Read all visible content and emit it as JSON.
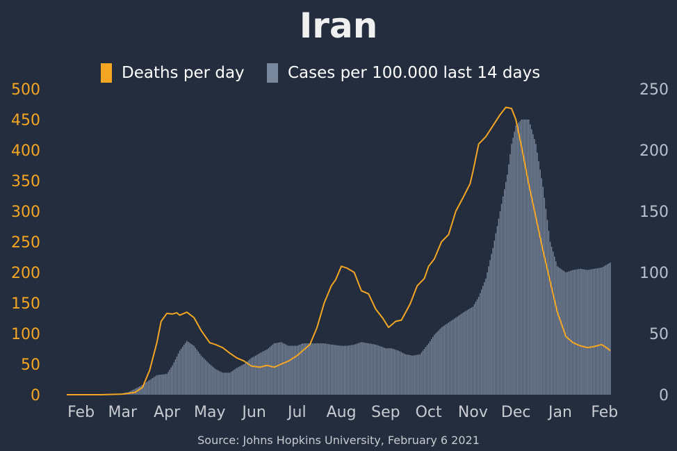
{
  "chart_data": {
    "type": "bar+line",
    "title": "Iran",
    "source": "Source: Johns Hopkins University, February 6 2021",
    "x_tick_labels": [
      "Feb",
      "Mar",
      "Apr",
      "May",
      "Jun",
      "Jul",
      "Aug",
      "Sep",
      "Oct",
      "Nov",
      "Dec",
      "Jan",
      "Feb"
    ],
    "y_left": {
      "ticks": [
        "0",
        "50",
        "100",
        "150",
        "200",
        "250",
        "300",
        "350",
        "400",
        "450",
        "500"
      ],
      "ylim": [
        0,
        500
      ]
    },
    "y_right": {
      "ticks": [
        "0",
        "50",
        "100",
        "150",
        "200",
        "250"
      ],
      "ylim": [
        0,
        250
      ]
    },
    "legend": {
      "placement": "top-center"
    },
    "series": [
      {
        "name": "Deaths per day",
        "kind": "line",
        "axis": "left",
        "color": "#f5a623",
        "x": [
          "2020-01-22",
          "2020-02-15",
          "2020-03-01",
          "2020-03-10",
          "2020-03-15",
          "2020-03-20",
          "2020-03-25",
          "2020-03-28",
          "2020-04-01",
          "2020-04-05",
          "2020-04-08",
          "2020-04-10",
          "2020-04-15",
          "2020-04-20",
          "2020-04-25",
          "2020-05-01",
          "2020-05-05",
          "2020-05-10",
          "2020-05-15",
          "2020-05-20",
          "2020-05-25",
          "2020-05-30",
          "2020-06-05",
          "2020-06-10",
          "2020-06-15",
          "2020-06-20",
          "2020-06-25",
          "2020-07-01",
          "2020-07-05",
          "2020-07-10",
          "2020-07-15",
          "2020-07-20",
          "2020-07-25",
          "2020-07-28",
          "2020-08-01",
          "2020-08-05",
          "2020-08-10",
          "2020-08-15",
          "2020-08-20",
          "2020-08-25",
          "2020-08-30",
          "2020-09-03",
          "2020-09-08",
          "2020-09-12",
          "2020-09-18",
          "2020-09-23",
          "2020-09-28",
          "2020-10-01",
          "2020-10-05",
          "2020-10-10",
          "2020-10-15",
          "2020-10-20",
          "2020-10-25",
          "2020-10-30",
          "2020-11-01",
          "2020-11-05",
          "2020-11-10",
          "2020-11-15",
          "2020-11-20",
          "2020-11-24",
          "2020-11-28",
          "2020-12-01",
          "2020-12-05",
          "2020-12-10",
          "2020-12-15",
          "2020-12-20",
          "2020-12-25",
          "2020-12-30",
          "2021-01-05",
          "2021-01-10",
          "2021-01-15",
          "2021-01-20",
          "2021-01-25",
          "2021-01-30",
          "2021-02-03",
          "2021-02-05"
        ],
        "values": [
          0,
          0,
          1,
          4,
          12,
          40,
          85,
          120,
          133,
          132,
          134,
          130,
          135,
          126,
          105,
          85,
          82,
          77,
          68,
          60,
          55,
          47,
          45,
          48,
          45,
          50,
          55,
          64,
          72,
          82,
          110,
          150,
          178,
          188,
          210,
          207,
          200,
          170,
          165,
          140,
          125,
          110,
          120,
          122,
          148,
          178,
          190,
          210,
          222,
          250,
          262,
          300,
          322,
          345,
          365,
          410,
          422,
          440,
          458,
          470,
          468,
          450,
          405,
          345,
          290,
          235,
          185,
          135,
          95,
          85,
          80,
          77,
          79,
          82,
          76,
          72
        ]
      },
      {
        "name": "Cases per 100.000 last 14 days",
        "kind": "bar",
        "axis": "right",
        "color": "#7a889e",
        "x": [
          "2020-01-22",
          "2020-02-19",
          "2020-02-25",
          "2020-03-05",
          "2020-03-15",
          "2020-03-25",
          "2020-04-01",
          "2020-04-05",
          "2020-04-10",
          "2020-04-15",
          "2020-04-20",
          "2020-04-25",
          "2020-05-01",
          "2020-05-05",
          "2020-05-10",
          "2020-05-15",
          "2020-05-20",
          "2020-05-25",
          "2020-05-30",
          "2020-06-05",
          "2020-06-10",
          "2020-06-15",
          "2020-06-20",
          "2020-06-25",
          "2020-07-01",
          "2020-07-05",
          "2020-07-10",
          "2020-07-15",
          "2020-07-20",
          "2020-07-25",
          "2020-08-01",
          "2020-08-05",
          "2020-08-10",
          "2020-08-15",
          "2020-08-20",
          "2020-08-25",
          "2020-09-01",
          "2020-09-05",
          "2020-09-10",
          "2020-09-15",
          "2020-09-20",
          "2020-09-25",
          "2020-10-01",
          "2020-10-05",
          "2020-10-10",
          "2020-10-15",
          "2020-10-20",
          "2020-10-25",
          "2020-11-01",
          "2020-11-05",
          "2020-11-10",
          "2020-11-15",
          "2020-11-20",
          "2020-11-25",
          "2020-11-28",
          "2020-12-01",
          "2020-12-05",
          "2020-12-10",
          "2020-12-15",
          "2020-12-20",
          "2020-12-25",
          "2020-12-30",
          "2021-01-05",
          "2021-01-10",
          "2021-01-15",
          "2021-01-20",
          "2021-01-25",
          "2021-01-30",
          "2021-02-05"
        ],
        "values": [
          0,
          0,
          0.2,
          2,
          8,
          16,
          17,
          24,
          36,
          44,
          40,
          32,
          25,
          21,
          18,
          18,
          22,
          25,
          30,
          34,
          37,
          42,
          43,
          40,
          40,
          42,
          42,
          42,
          42,
          41,
          40,
          40,
          41,
          43,
          42,
          41,
          38,
          38,
          36,
          33,
          32,
          33,
          42,
          49,
          55,
          59,
          63,
          67,
          72,
          80,
          95,
          120,
          150,
          180,
          205,
          220,
          225,
          225,
          205,
          170,
          125,
          105,
          100,
          102,
          103,
          102,
          103,
          104,
          108
        ]
      }
    ]
  }
}
